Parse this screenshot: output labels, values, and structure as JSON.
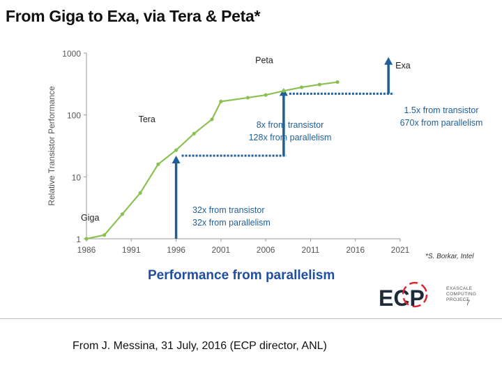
{
  "slide": {
    "title": "From Giga to Exa, via Tera & Peta*",
    "subtitle": "Performance from parallelism",
    "credit": "*S. Borkar, Intel",
    "footer": "From J. Messina, 31 July, 2016 (ECP director, ANL)",
    "page_number": "7"
  },
  "logo": {
    "text": "ECP",
    "subtext_lines": [
      "EXASCALE",
      "COMPUTING",
      "PROJECT"
    ],
    "color_dark": "#1c2a3a",
    "color_accent": "#d8262f"
  },
  "chart_data": {
    "type": "line",
    "title": "",
    "xlabel": "",
    "ylabel": "Relative Transistor Performance",
    "yscale": "log",
    "ylim": [
      1,
      1000
    ],
    "xlim": [
      1986,
      2021
    ],
    "x_ticks": [
      "1986",
      "1991",
      "1996",
      "2001",
      "2006",
      "2011",
      "2016",
      "2021"
    ],
    "y_ticks": [
      "1",
      "10",
      "100",
      "1000"
    ],
    "series": [
      {
        "name": "Relative Transistor Performance",
        "color": "#8cc152",
        "points": [
          [
            1986,
            1.0
          ],
          [
            1988,
            1.15
          ],
          [
            1990,
            2.5
          ],
          [
            1992,
            5.5
          ],
          [
            1994,
            16
          ],
          [
            1996,
            27
          ],
          [
            1998,
            50
          ],
          [
            2000,
            85
          ],
          [
            2001,
            165
          ],
          [
            2004,
            190
          ],
          [
            2006,
            210
          ],
          [
            2008,
            245
          ],
          [
            2010,
            280
          ],
          [
            2012,
            310
          ],
          [
            2014,
            340
          ]
        ]
      }
    ],
    "annotations": {
      "points": [
        {
          "label": "Giga",
          "x": 1986,
          "y": 1.0
        },
        {
          "label": "Tera",
          "x": 1996,
          "y": 30
        },
        {
          "label": "Peta",
          "x": 2006,
          "y": 300
        },
        {
          "label": "Exa",
          "x": 2020,
          "y": 1000
        }
      ],
      "arrows": [
        {
          "x": 1996,
          "y_from": 1.0,
          "y_to": 22,
          "color": "#1f5f99",
          "lines": [
            "32x from transistor",
            "32x from parallelism"
          ]
        },
        {
          "x": 2008,
          "y_from": 22,
          "y_to": 220,
          "color": "#1f5f99",
          "lines": [
            "8x from transistor",
            "128x from parallelism"
          ]
        },
        {
          "x": 2020,
          "y_from": 220,
          "y_to": 700,
          "color": "#1f5f99",
          "lines": [
            "1.5x from transistor",
            "670x from parallelism"
          ]
        }
      ],
      "dotted_levels": [
        {
          "x_from": 1996,
          "x_to": 2008,
          "y": 22
        },
        {
          "x_from": 2008,
          "x_to": 2020,
          "y": 220
        }
      ]
    }
  }
}
